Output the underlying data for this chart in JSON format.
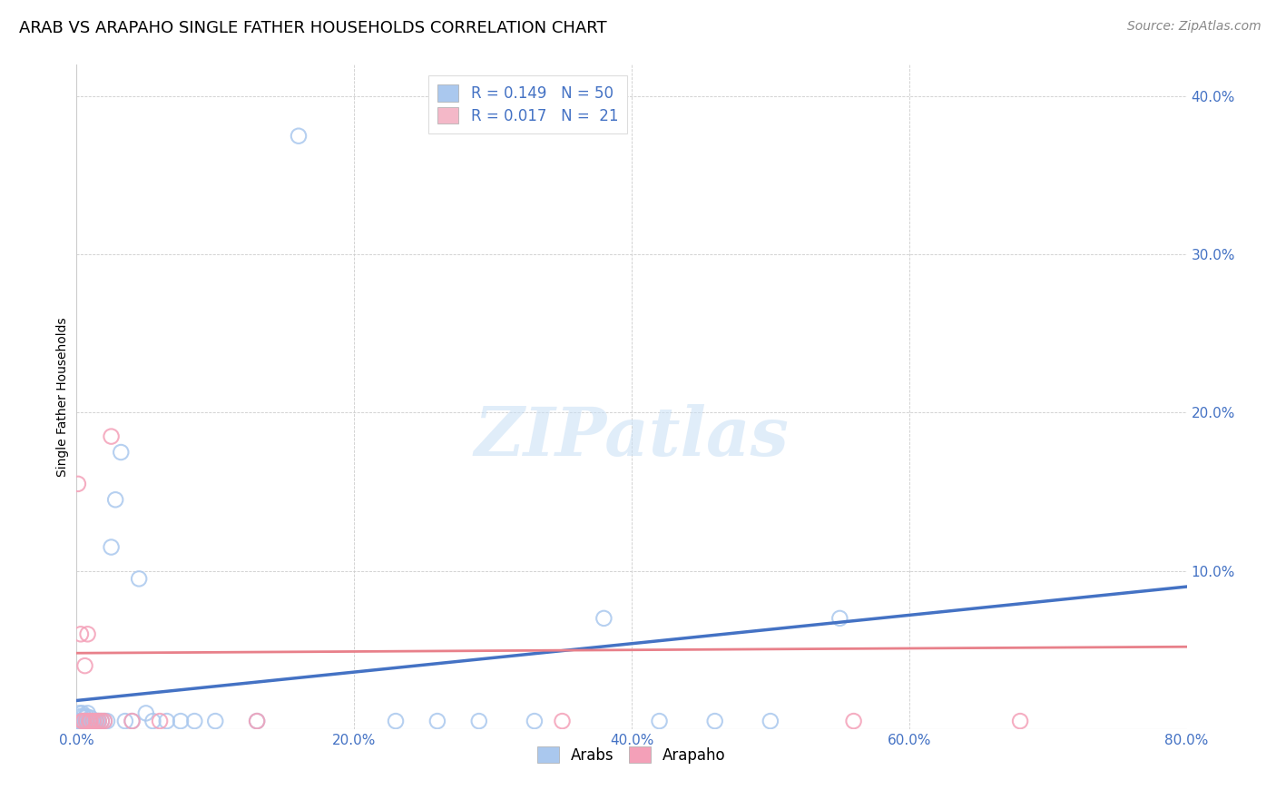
{
  "title": "ARAB VS ARAPAHO SINGLE FATHER HOUSEHOLDS CORRELATION CHART",
  "source": "Source: ZipAtlas.com",
  "ylabel": "Single Father Households",
  "xlim": [
    0.0,
    0.8
  ],
  "ylim": [
    0.0,
    0.42
  ],
  "xticks": [
    0.0,
    0.2,
    0.4,
    0.6,
    0.8
  ],
  "yticks": [
    0.1,
    0.2,
    0.3,
    0.4
  ],
  "xticklabels": [
    "0.0%",
    "20.0%",
    "40.0%",
    "60.0%",
    "80.0%"
  ],
  "yticklabels": [
    "10.0%",
    "20.0%",
    "30.0%",
    "40.0%"
  ],
  "grid_color": "#cccccc",
  "background_color": "#ffffff",
  "legend_entries": [
    {
      "label": "Arabs",
      "R": "0.149",
      "N": "50",
      "color": "#aac8ee"
    },
    {
      "label": "Arapaho",
      "R": "0.017",
      "N": "21",
      "color": "#f4b8c8"
    }
  ],
  "arab_color": "#aac8ee",
  "arapaho_color": "#f4a0b8",
  "arab_line_color": "#4472c4",
  "arapaho_line_color": "#e8808a",
  "arab_scatter_x": [
    0.001,
    0.002,
    0.002,
    0.003,
    0.003,
    0.004,
    0.004,
    0.005,
    0.005,
    0.006,
    0.006,
    0.007,
    0.007,
    0.008,
    0.008,
    0.009,
    0.01,
    0.01,
    0.011,
    0.012,
    0.013,
    0.014,
    0.015,
    0.016,
    0.018,
    0.02,
    0.022,
    0.025,
    0.028,
    0.032,
    0.035,
    0.04,
    0.045,
    0.05,
    0.055,
    0.065,
    0.075,
    0.085,
    0.1,
    0.13,
    0.16,
    0.23,
    0.26,
    0.29,
    0.33,
    0.38,
    0.42,
    0.46,
    0.5,
    0.55
  ],
  "arab_scatter_y": [
    0.005,
    0.005,
    0.01,
    0.005,
    0.008,
    0.005,
    0.01,
    0.005,
    0.008,
    0.005,
    0.007,
    0.005,
    0.008,
    0.005,
    0.01,
    0.005,
    0.005,
    0.007,
    0.005,
    0.005,
    0.005,
    0.005,
    0.005,
    0.005,
    0.005,
    0.005,
    0.005,
    0.115,
    0.145,
    0.175,
    0.005,
    0.005,
    0.095,
    0.01,
    0.005,
    0.005,
    0.005,
    0.005,
    0.005,
    0.005,
    0.375,
    0.005,
    0.005,
    0.005,
    0.005,
    0.07,
    0.005,
    0.005,
    0.005,
    0.07
  ],
  "arapaho_scatter_x": [
    0.001,
    0.003,
    0.004,
    0.005,
    0.006,
    0.007,
    0.008,
    0.009,
    0.01,
    0.012,
    0.014,
    0.016,
    0.018,
    0.02,
    0.025,
    0.04,
    0.06,
    0.13,
    0.35,
    0.56,
    0.68
  ],
  "arapaho_scatter_y": [
    0.155,
    0.06,
    0.005,
    0.005,
    0.04,
    0.005,
    0.06,
    0.005,
    0.005,
    0.005,
    0.005,
    0.005,
    0.005,
    0.005,
    0.185,
    0.005,
    0.005,
    0.005,
    0.005,
    0.005,
    0.005
  ],
  "title_fontsize": 13,
  "axis_fontsize": 10,
  "tick_fontsize": 11,
  "source_fontsize": 10
}
